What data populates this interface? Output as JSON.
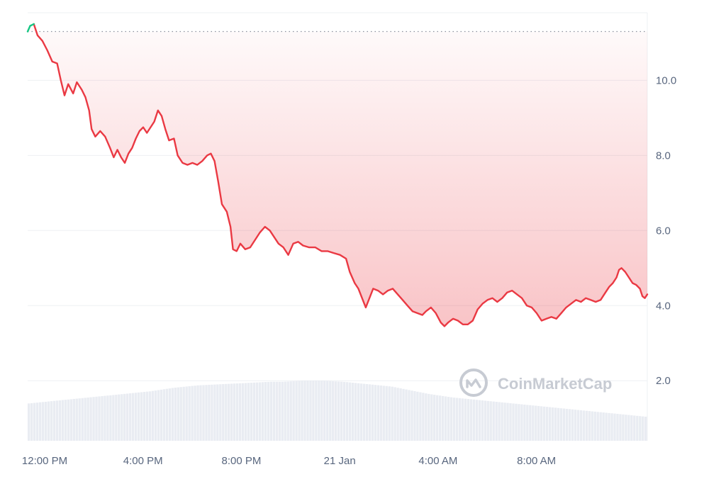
{
  "chart_data": {
    "type": "line",
    "title": "",
    "xlabel": "",
    "ylabel": "",
    "x_ticks": [
      "12:00 PM",
      "4:00 PM",
      "8:00 PM",
      "21 Jan",
      "4:00 AM",
      "8:00 AM"
    ],
    "y_ticks": [
      "2.0",
      "4.0",
      "6.0",
      "8.0",
      "10.0"
    ],
    "y_tick_values": [
      2,
      4,
      6,
      8,
      10
    ],
    "ylim": [
      0.4,
      11.8
    ],
    "x_range_hours": [
      12.0,
      36.2
    ],
    "grid": "horizontal",
    "y_axis_position": "right",
    "reference_level": 11.3,
    "series": [
      {
        "color_up": "#16c784",
        "color_down": "#ea3943",
        "points": [
          [
            12.0,
            11.3
          ],
          [
            12.1,
            11.45
          ],
          [
            12.25,
            11.5
          ],
          [
            12.4,
            11.2
          ],
          [
            12.6,
            11.05
          ],
          [
            12.8,
            10.8
          ],
          [
            13.0,
            10.5
          ],
          [
            13.2,
            10.45
          ],
          [
            13.35,
            10.0
          ],
          [
            13.5,
            9.6
          ],
          [
            13.65,
            9.9
          ],
          [
            13.85,
            9.65
          ],
          [
            14.0,
            9.95
          ],
          [
            14.2,
            9.75
          ],
          [
            14.35,
            9.55
          ],
          [
            14.5,
            9.2
          ],
          [
            14.6,
            8.7
          ],
          [
            14.75,
            8.5
          ],
          [
            14.95,
            8.65
          ],
          [
            15.15,
            8.5
          ],
          [
            15.35,
            8.2
          ],
          [
            15.5,
            7.95
          ],
          [
            15.65,
            8.15
          ],
          [
            15.8,
            7.95
          ],
          [
            15.95,
            7.8
          ],
          [
            16.1,
            8.05
          ],
          [
            16.25,
            8.2
          ],
          [
            16.4,
            8.45
          ],
          [
            16.55,
            8.65
          ],
          [
            16.7,
            8.75
          ],
          [
            16.85,
            8.6
          ],
          [
            17.0,
            8.75
          ],
          [
            17.15,
            8.9
          ],
          [
            17.3,
            9.2
          ],
          [
            17.45,
            9.05
          ],
          [
            17.6,
            8.7
          ],
          [
            17.75,
            8.4
          ],
          [
            17.95,
            8.45
          ],
          [
            18.1,
            8.0
          ],
          [
            18.3,
            7.8
          ],
          [
            18.5,
            7.75
          ],
          [
            18.7,
            7.8
          ],
          [
            18.9,
            7.75
          ],
          [
            19.1,
            7.85
          ],
          [
            19.3,
            8.0
          ],
          [
            19.45,
            8.05
          ],
          [
            19.6,
            7.85
          ],
          [
            19.75,
            7.3
          ],
          [
            19.9,
            6.7
          ],
          [
            20.1,
            6.5
          ],
          [
            20.25,
            6.1
          ],
          [
            20.35,
            5.5
          ],
          [
            20.5,
            5.45
          ],
          [
            20.65,
            5.65
          ],
          [
            20.85,
            5.5
          ],
          [
            21.05,
            5.55
          ],
          [
            21.25,
            5.75
          ],
          [
            21.45,
            5.95
          ],
          [
            21.65,
            6.1
          ],
          [
            21.85,
            6.0
          ],
          [
            22.0,
            5.85
          ],
          [
            22.2,
            5.65
          ],
          [
            22.4,
            5.55
          ],
          [
            22.6,
            5.35
          ],
          [
            22.8,
            5.65
          ],
          [
            23.0,
            5.7
          ],
          [
            23.2,
            5.6
          ],
          [
            23.45,
            5.55
          ],
          [
            23.7,
            5.55
          ],
          [
            23.95,
            5.45
          ],
          [
            24.2,
            5.45
          ],
          [
            24.45,
            5.4
          ],
          [
            24.7,
            5.35
          ],
          [
            24.95,
            5.25
          ],
          [
            25.1,
            4.9
          ],
          [
            25.3,
            4.6
          ],
          [
            25.45,
            4.45
          ],
          [
            25.6,
            4.2
          ],
          [
            25.75,
            3.95
          ],
          [
            25.9,
            4.2
          ],
          [
            26.05,
            4.45
          ],
          [
            26.25,
            4.4
          ],
          [
            26.45,
            4.3
          ],
          [
            26.65,
            4.4
          ],
          [
            26.85,
            4.45
          ],
          [
            27.05,
            4.3
          ],
          [
            27.25,
            4.15
          ],
          [
            27.45,
            4.0
          ],
          [
            27.65,
            3.85
          ],
          [
            27.85,
            3.8
          ],
          [
            28.05,
            3.75
          ],
          [
            28.2,
            3.85
          ],
          [
            28.4,
            3.95
          ],
          [
            28.6,
            3.8
          ],
          [
            28.8,
            3.55
          ],
          [
            28.95,
            3.45
          ],
          [
            29.1,
            3.55
          ],
          [
            29.3,
            3.65
          ],
          [
            29.5,
            3.6
          ],
          [
            29.7,
            3.5
          ],
          [
            29.9,
            3.5
          ],
          [
            30.1,
            3.6
          ],
          [
            30.3,
            3.9
          ],
          [
            30.5,
            4.05
          ],
          [
            30.7,
            4.15
          ],
          [
            30.9,
            4.2
          ],
          [
            31.1,
            4.1
          ],
          [
            31.3,
            4.2
          ],
          [
            31.5,
            4.35
          ],
          [
            31.7,
            4.4
          ],
          [
            31.9,
            4.3
          ],
          [
            32.1,
            4.2
          ],
          [
            32.3,
            4.0
          ],
          [
            32.5,
            3.95
          ],
          [
            32.7,
            3.8
          ],
          [
            32.9,
            3.6
          ],
          [
            33.1,
            3.65
          ],
          [
            33.3,
            3.7
          ],
          [
            33.5,
            3.65
          ],
          [
            33.7,
            3.8
          ],
          [
            33.9,
            3.95
          ],
          [
            34.1,
            4.05
          ],
          [
            34.3,
            4.15
          ],
          [
            34.5,
            4.1
          ],
          [
            34.7,
            4.2
          ],
          [
            34.9,
            4.15
          ],
          [
            35.1,
            4.1
          ],
          [
            35.3,
            4.15
          ],
          [
            35.5,
            4.35
          ],
          [
            35.65,
            4.5
          ],
          [
            35.8,
            4.6
          ],
          [
            35.95,
            4.75
          ],
          [
            36.05,
            4.95
          ],
          [
            36.15,
            5.0
          ],
          [
            36.3,
            4.9
          ],
          [
            36.45,
            4.75
          ],
          [
            36.6,
            4.6
          ],
          [
            36.75,
            4.55
          ],
          [
            36.9,
            4.45
          ],
          [
            37.0,
            4.25
          ],
          [
            37.1,
            4.2
          ],
          [
            37.2,
            4.3
          ]
        ]
      }
    ],
    "volume": {
      "color": "#e9ecf2",
      "relative_values": [
        0.62,
        0.64,
        0.66,
        0.68,
        0.7,
        0.72,
        0.74,
        0.76,
        0.78,
        0.8,
        0.82,
        0.85,
        0.88,
        0.9,
        0.92,
        0.93,
        0.94,
        0.95,
        0.96,
        0.97,
        0.98,
        0.98,
        0.99,
        1.0,
        1.0,
        0.99,
        0.98,
        0.96,
        0.94,
        0.92,
        0.9,
        0.86,
        0.82,
        0.78,
        0.75,
        0.72,
        0.7,
        0.68,
        0.66,
        0.64,
        0.62,
        0.6,
        0.58,
        0.56,
        0.54,
        0.52,
        0.5,
        0.48,
        0.46,
        0.44,
        0.42,
        0.4
      ]
    }
  },
  "watermark": {
    "text": "CoinMarketCap",
    "icon": "coinmarketcap-logo-icon"
  },
  "colors": {
    "grid": "#eef0f3",
    "axis_text": "#58667e",
    "reference_line": "#8a919e",
    "fill_top": "#ea3943"
  }
}
